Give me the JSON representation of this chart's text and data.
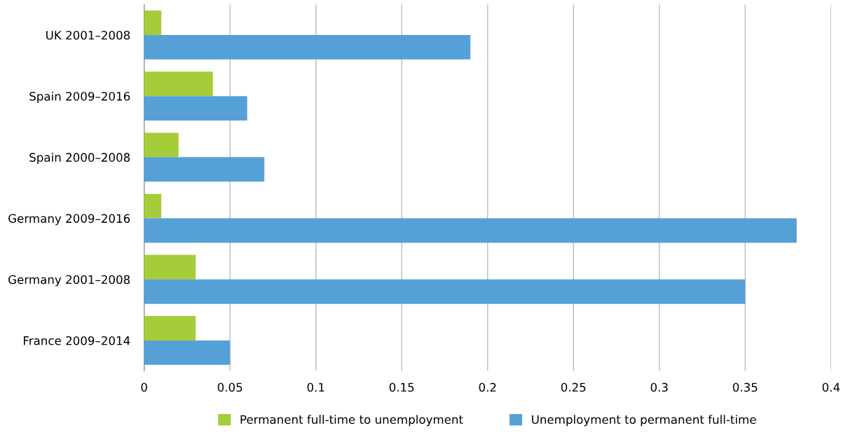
{
  "chart_data": {
    "type": "bar",
    "orientation": "horizontal",
    "categories": [
      "UK 2001–2008",
      "Spain 2009–2016",
      "Spain 2000–2008",
      "Germany 2009–2016",
      "Germany 2001–2008",
      "France 2009–2014"
    ],
    "series": [
      {
        "name": "Permanent full-time to unemployment",
        "color": "#a5cd39",
        "values": [
          0.01,
          0.04,
          0.02,
          0.01,
          0.03,
          0.03
        ]
      },
      {
        "name": "Unemployment to permanent full-time",
        "color": "#56a0d8",
        "values": [
          0.19,
          0.06,
          0.07,
          0.38,
          0.35,
          0.05
        ]
      }
    ],
    "xlim": [
      0,
      0.4
    ],
    "xticks": [
      0,
      0.05,
      0.1,
      0.15,
      0.2,
      0.25,
      0.3,
      0.35,
      0.4
    ],
    "grid": "x",
    "legend": "bottom"
  }
}
